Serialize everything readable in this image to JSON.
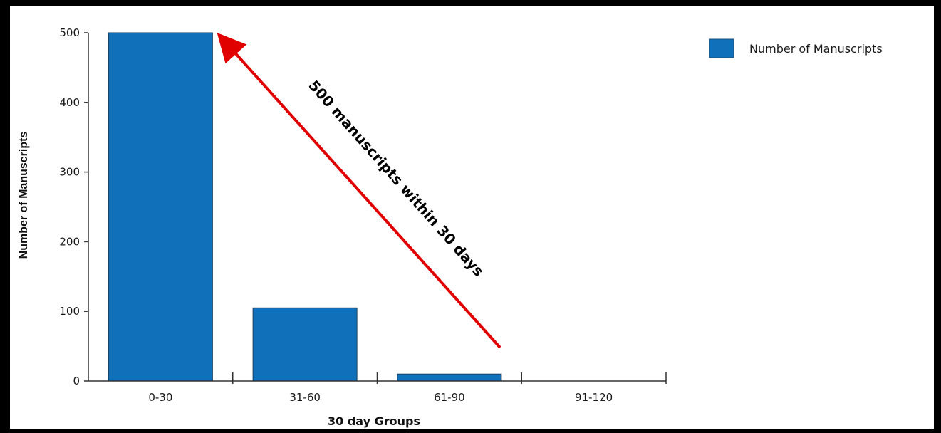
{
  "chart_data": {
    "type": "bar",
    "categories": [
      "0-30",
      "31-60",
      "61-90",
      "91-120"
    ],
    "series": [
      {
        "name": "Number of Manuscripts",
        "values": [
          500,
          105,
          10,
          0
        ],
        "color": "#1071BA"
      }
    ],
    "xlabel": "30 day Groups",
    "ylabel": "Number of Manuscripts",
    "ylim": [
      0,
      500
    ],
    "yticks": [
      0,
      100,
      200,
      300,
      400,
      500
    ],
    "grid": false,
    "legend": "top-right",
    "annotation": {
      "text": "500 manuscripts within 30 days",
      "arrow_color": "#E00000"
    }
  }
}
